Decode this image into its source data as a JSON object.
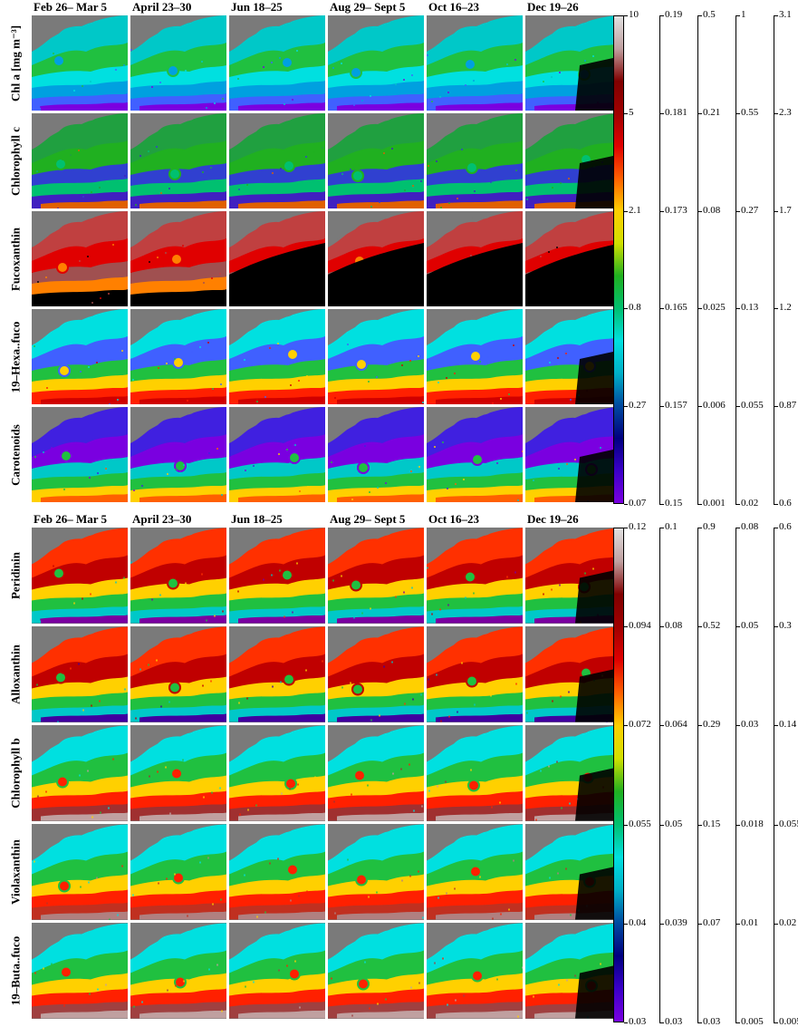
{
  "colors": {
    "jet_scale": [
      "#7a00e0",
      "#3a00c8",
      "#000080",
      "#004aa0",
      "#00b0c8",
      "#00e0e0",
      "#00c070",
      "#20b020",
      "#d0e000",
      "#ffd000",
      "#ff6000",
      "#e00000",
      "#a00000",
      "#800000",
      "#c0a0a0",
      "#e0e0e0"
    ],
    "land": "#7a7a7a",
    "nodata": "#000000"
  },
  "top_panel": {
    "columns": [
      "Feb 26– Mar 5",
      "April 23–30",
      "Jun 18–25",
      "Aug 29– Sept 5",
      "Oct 16–23",
      "Dec 19–26"
    ],
    "rows": [
      "Chl a [mg m⁻³]",
      "Chlorophyll c",
      "Fucoxanthin",
      "19–Hexa..fuco",
      "Carotenoids"
    ],
    "colorbar_ticks": [
      "10",
      "5",
      "2.1",
      "0.8",
      "0.27",
      "0.07"
    ],
    "axes": [
      [
        "0.19",
        "0.181",
        "0.173",
        "0.165",
        "0.157",
        "0.15"
      ],
      [
        "0.5",
        "0.21",
        "0.08",
        "0.025",
        "0.006",
        "0.001"
      ],
      [
        "1",
        "0.55",
        "0.27",
        "0.13",
        "0.055",
        "0.02"
      ],
      [
        "3.1",
        "2.3",
        "1.7",
        "1.2",
        "0.87",
        "0.6"
      ]
    ]
  },
  "bottom_panel": {
    "columns": [
      "Feb 26– Mar 5",
      "April 23–30",
      "Jun 18–25",
      "Aug 29– Sept 5",
      "Oct 16–23",
      "Dec 19–26"
    ],
    "rows": [
      "Peridinin",
      "Alloxanthin",
      "Chlorophyll b",
      "Violaxanthin",
      "19–Buta..fuco"
    ],
    "colorbar_ticks": [
      "0.12",
      "0.094",
      "0.072",
      "0.055",
      "0.04",
      "0.03"
    ],
    "axes": [
      [
        "0.1",
        "0.08",
        "0.064",
        "0.05",
        "0.039",
        "0.03"
      ],
      [
        "0.9",
        "0.52",
        "0.29",
        "0.15",
        "0.07",
        "0.03"
      ],
      [
        "0.08",
        "0.05",
        "0.03",
        "0.018",
        "0.01",
        "0.005"
      ],
      [
        "0.6",
        "0.3",
        "0.14",
        "0.055",
        "0.02",
        "0.005"
      ]
    ]
  },
  "maps": {
    "top": [
      {
        "palette": [
          "#00c8c8",
          "#20c040",
          "#00e0e0",
          "#00a0e0",
          "#4060ff",
          "#7a00e0"
        ]
      },
      {
        "palette": [
          "#20a040",
          "#20b020",
          "#3040d0",
          "#00c070",
          "#4020c0",
          "#e06000"
        ]
      },
      {
        "palette": [
          "#c04040",
          "#e00000",
          "#a05050",
          "#ff8000",
          "#000000",
          "#000000"
        ]
      },
      {
        "palette": [
          "#00e0e0",
          "#4060ff",
          "#20c040",
          "#ffd000",
          "#ff2000",
          "#d00000"
        ]
      },
      {
        "palette": [
          "#4020e0",
          "#7a00e0",
          "#00c8c8",
          "#20c040",
          "#ffd000",
          "#ff6000"
        ]
      }
    ],
    "bottom": [
      {
        "palette": [
          "#ff3000",
          "#c00000",
          "#ffd000",
          "#20c040",
          "#00c8c8",
          "#7a00a0"
        ]
      },
      {
        "palette": [
          "#ff3000",
          "#c00000",
          "#ffd000",
          "#20c040",
          "#00c8c8",
          "#4000a0"
        ]
      },
      {
        "palette": [
          "#00e0e0",
          "#20c040",
          "#ffd000",
          "#ff2000",
          "#a03030",
          "#c0a0a0"
        ]
      },
      {
        "palette": [
          "#00e0e0",
          "#20c040",
          "#ffd000",
          "#ff2000",
          "#c03020",
          "#b08080"
        ]
      },
      {
        "palette": [
          "#00e0e0",
          "#20c040",
          "#ffd000",
          "#ff2000",
          "#a04040",
          "#c0a0a0"
        ]
      }
    ]
  }
}
